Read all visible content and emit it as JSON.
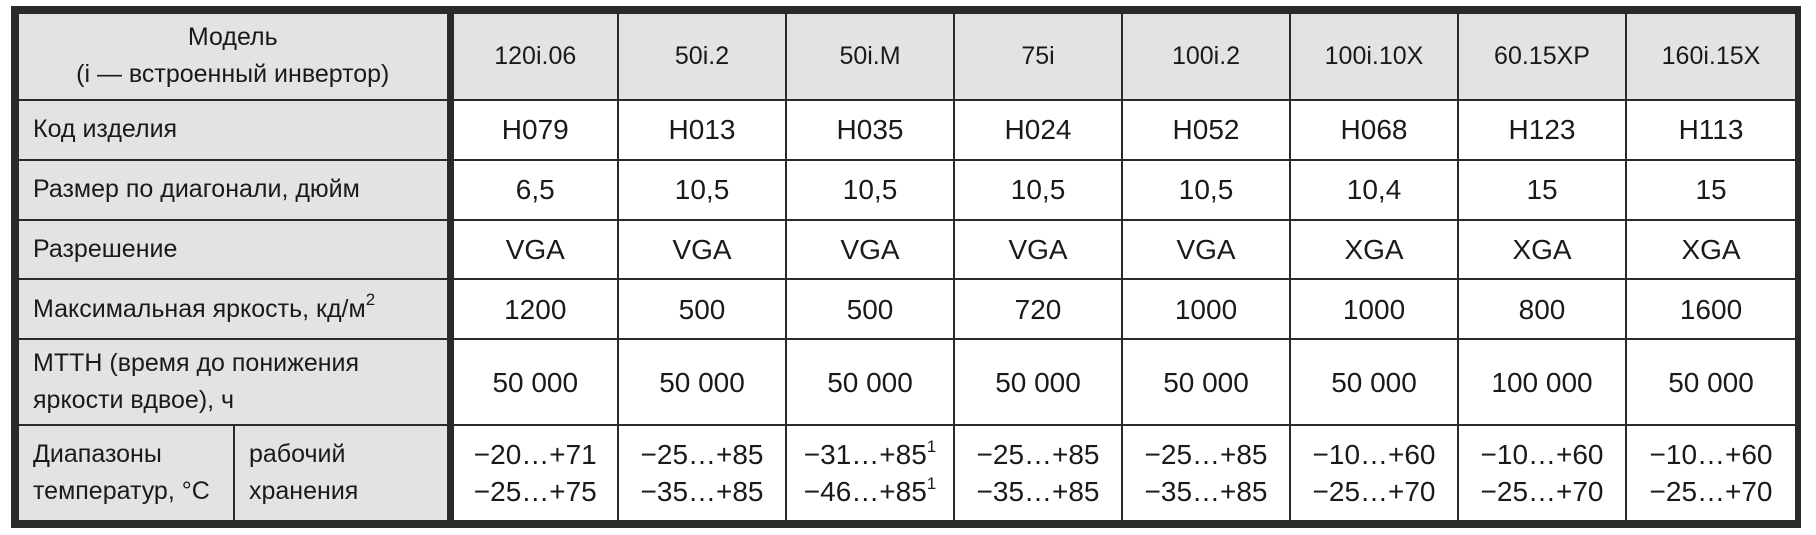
{
  "header": {
    "label_line1": "Модель",
    "label_line2": "(i — встроенный инвертор)",
    "models": [
      "120i.06",
      "50i.2",
      "50i.M",
      "75i",
      "100i.2",
      "100i.10X",
      "60.15XP",
      "160i.15X"
    ]
  },
  "rows": {
    "code": {
      "label": "Код изделия",
      "values": [
        "H079",
        "H013",
        "H035",
        "H024",
        "H052",
        "H068",
        "H123",
        "H113"
      ]
    },
    "diagonal": {
      "label": "Размер по диагонали, дюйм",
      "values": [
        "6,5",
        "10,5",
        "10,5",
        "10,5",
        "10,5",
        "10,4",
        "15",
        "15"
      ]
    },
    "resolution": {
      "label": "Разрешение",
      "values": [
        "VGA",
        "VGA",
        "VGA",
        "VGA",
        "VGA",
        "XGA",
        "XGA",
        "XGA"
      ]
    },
    "brightness": {
      "label": "Максимальная яркость, кд/м",
      "label_sup": "2",
      "values": [
        "1200",
        "500",
        "500",
        "720",
        "1000",
        "1000",
        "800",
        "1600"
      ]
    },
    "mttH": {
      "label_line1": "MTTH (время до понижения",
      "label_line2": "яркости вдвое), ч",
      "values": [
        "50 000",
        "50 000",
        "50 000",
        "50 000",
        "50 000",
        "50 000",
        "100 000",
        "50 000"
      ]
    },
    "temperature": {
      "label_line1": "Диапазоны",
      "label_line2": "температур, °C",
      "sub_operating": "рабочий",
      "sub_storage": "хранения",
      "operating": [
        "−20…+71",
        "−25…+85",
        "−31…+85",
        "−25…+85",
        "−25…+85",
        "−10…+60",
        "−10…+60",
        "−10…+60"
      ],
      "storage": [
        "−25…+75",
        "−35…+85",
        "−46…+85",
        "−35…+85",
        "−35…+85",
        "−25…+70",
        "−25…+70",
        "−25…+70"
      ],
      "footnote_mark": "1"
    }
  }
}
